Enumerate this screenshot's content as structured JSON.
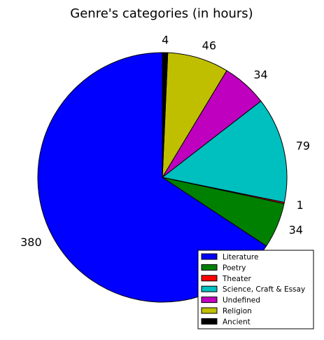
{
  "chart_data": {
    "type": "pie",
    "title": "Genre's categories (in hours)",
    "slices": [
      {
        "label": "Literature",
        "value": 380,
        "color": "#0000ff"
      },
      {
        "label": "Poetry",
        "value": 34,
        "color": "#008000"
      },
      {
        "label": "Theater",
        "value": 1,
        "color": "#ff0000"
      },
      {
        "label": "Science, Craft & Essay",
        "value": 79,
        "color": "#00bfbf"
      },
      {
        "label": "Undefined",
        "value": 34,
        "color": "#bf00bf"
      },
      {
        "label": "Religion",
        "value": 46,
        "color": "#bfbf00"
      },
      {
        "label": "Ancient",
        "value": 4,
        "color": "#000000"
      }
    ],
    "start_angle_deg": 90,
    "direction": "counterclockwise",
    "legend_position": "lower-right"
  }
}
